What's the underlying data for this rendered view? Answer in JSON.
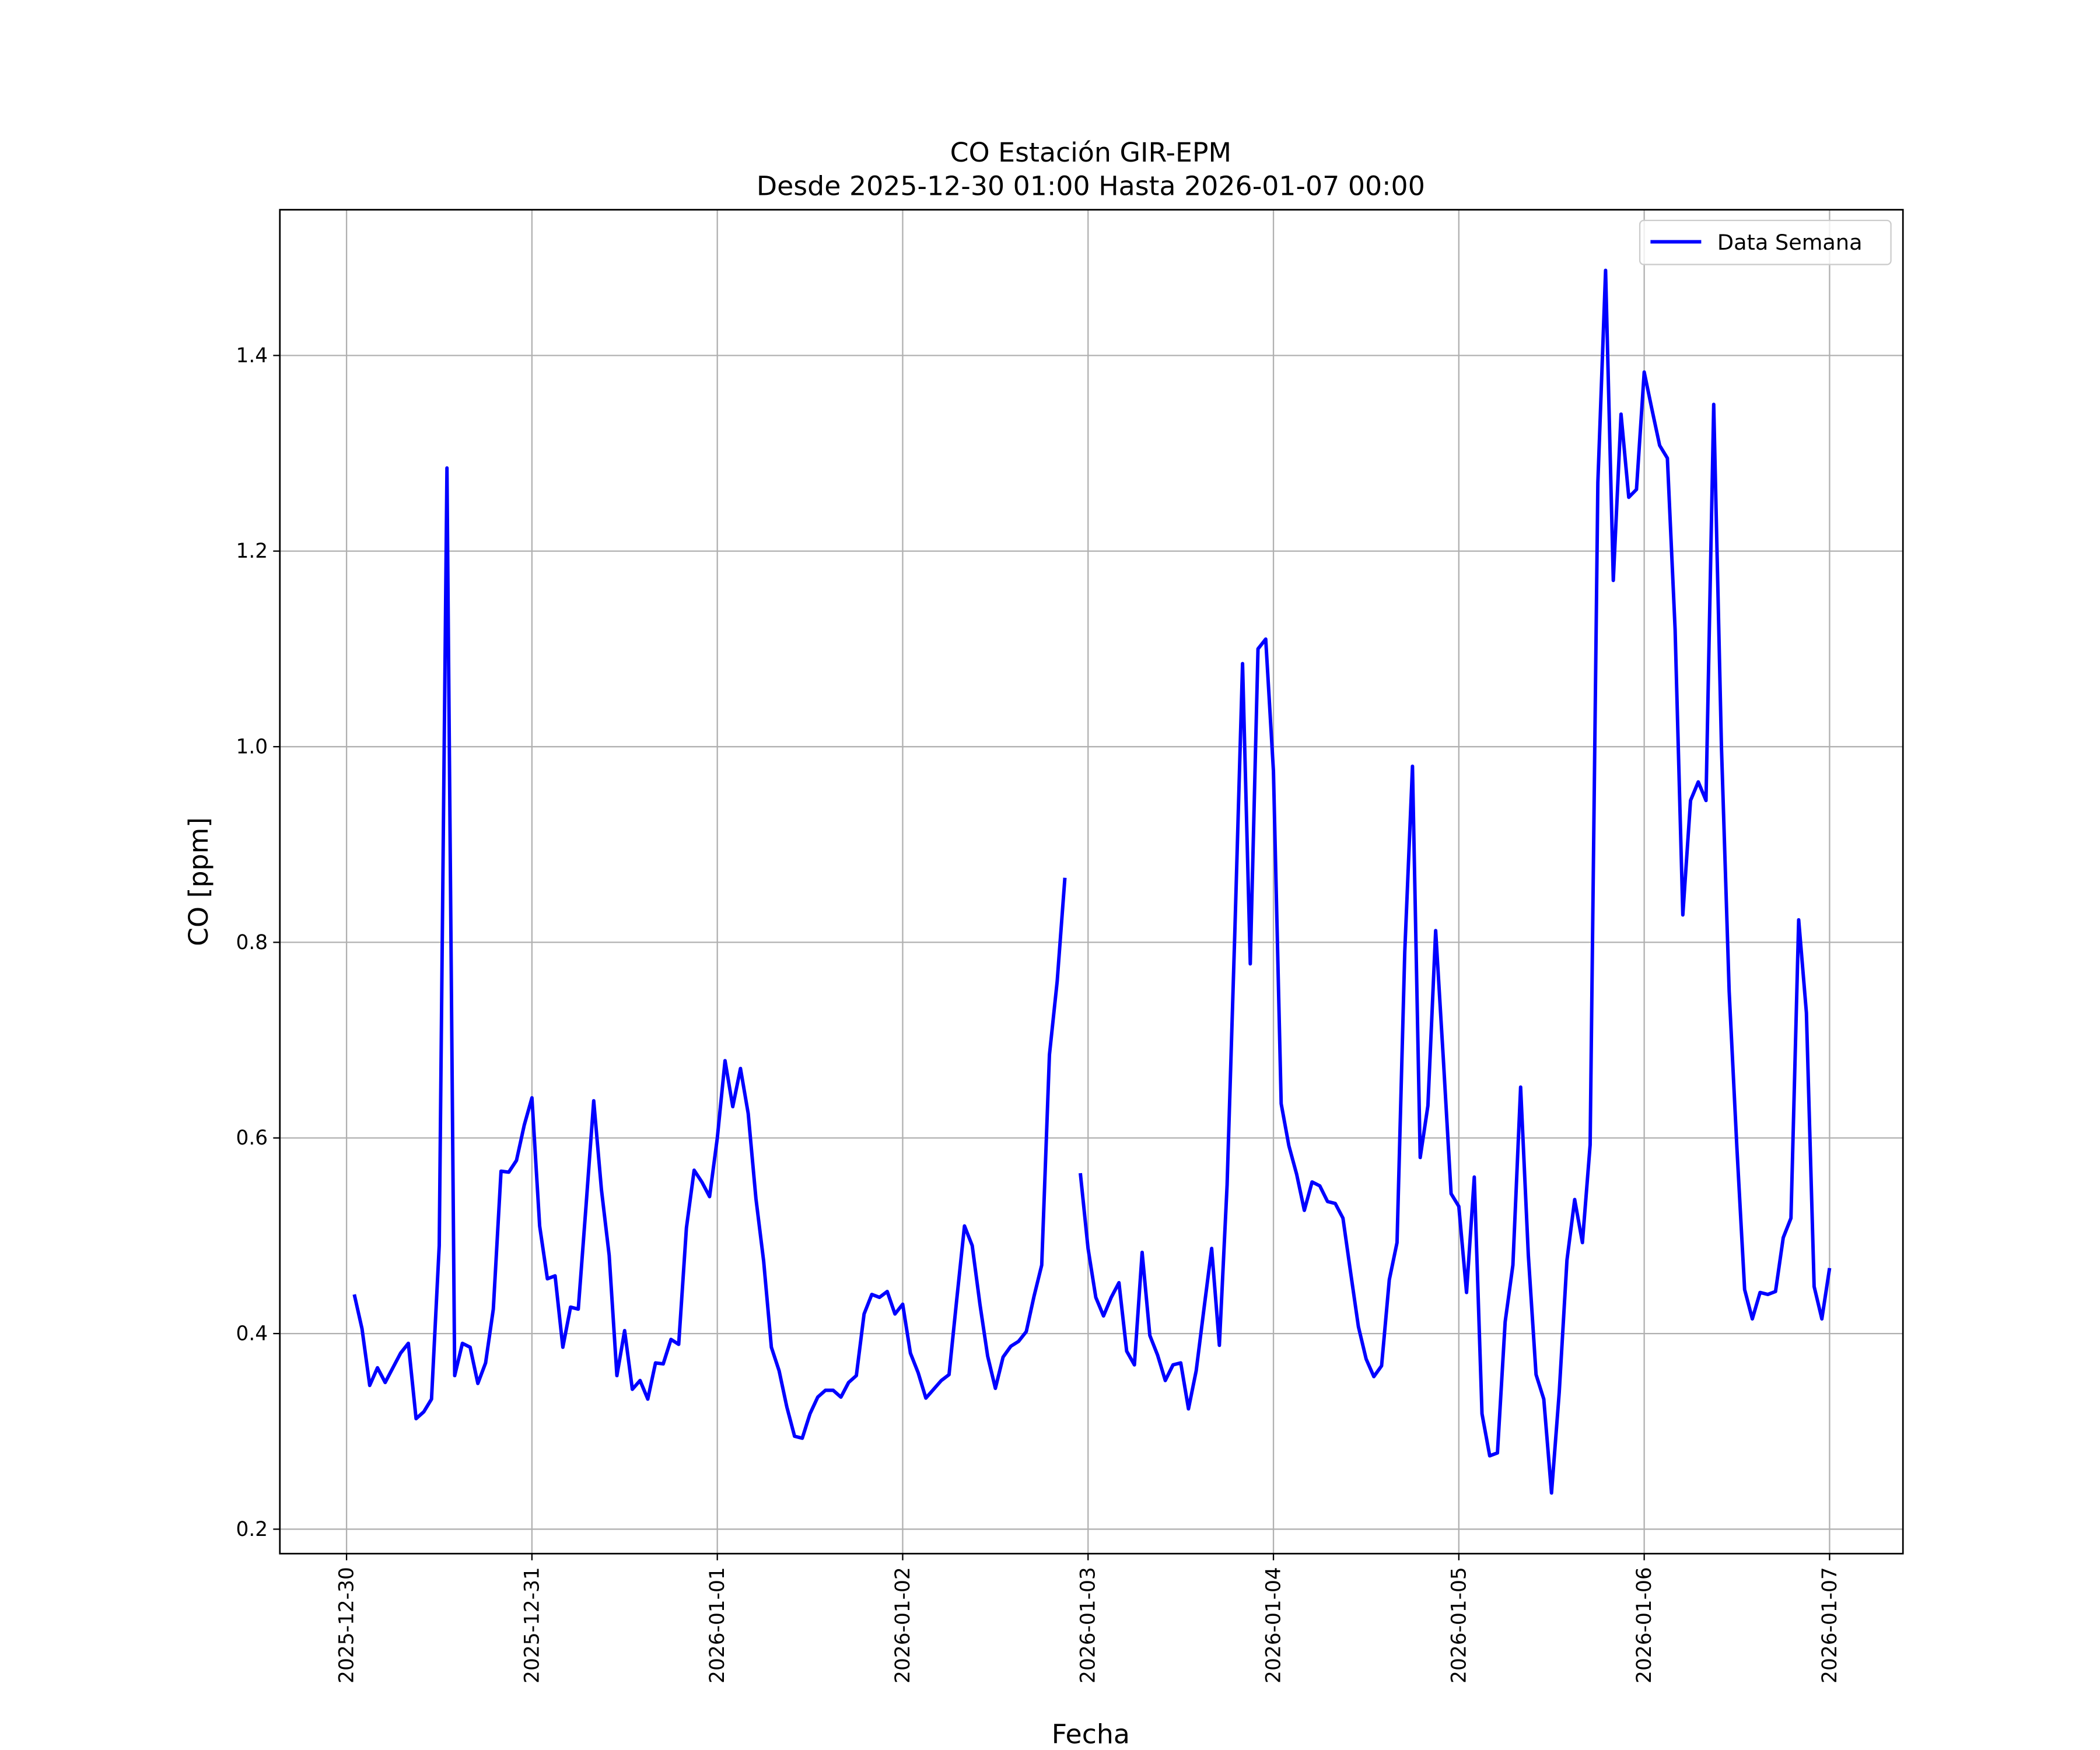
{
  "chart_data": {
    "type": "line",
    "title": "CO Estación GIR-EPM",
    "subtitle": "Desde 2025-12-30 01:00 Hasta 2026-01-07 00:00",
    "x_label": "Fecha",
    "y_label": "CO [ppm]",
    "grid": true,
    "legend": "upper right",
    "xlim": [
      "2025-12-29 15:22",
      "2026-01-07 09:30"
    ],
    "xticks": [
      "2025-12-30",
      "2025-12-31",
      "2026-01-01",
      "2026-01-02",
      "2026-01-03",
      "2026-01-04",
      "2026-01-05",
      "2026-01-06",
      "2026-01-07"
    ],
    "ylim": [
      0.175,
      1.549
    ],
    "yticks": [
      0.2,
      0.4,
      0.6,
      0.8,
      {
        "value": 1,
        "label": "1.0"
      },
      1.2,
      1.4
    ],
    "x": [
      "2025-12-30 01:00",
      "2025-12-30 02:00",
      "2025-12-30 03:00",
      "2025-12-30 04:00",
      "2025-12-30 05:00",
      "2025-12-30 06:00",
      "2025-12-30 07:00",
      "2025-12-30 08:00",
      "2025-12-30 09:00",
      "2025-12-30 10:00",
      "2025-12-30 11:00",
      "2025-12-30 12:00",
      "2025-12-30 13:00",
      "2025-12-30 14:00",
      "2025-12-30 15:00",
      "2025-12-30 16:00",
      "2025-12-30 17:00",
      "2025-12-30 18:00",
      "2025-12-30 19:00",
      "2025-12-30 20:00",
      "2025-12-30 21:00",
      "2025-12-30 22:00",
      "2025-12-30 23:00",
      "2025-12-31 00:00",
      "2025-12-31 01:00",
      "2025-12-31 02:00",
      "2025-12-31 03:00",
      "2025-12-31 04:00",
      "2025-12-31 05:00",
      "2025-12-31 06:00",
      "2025-12-31 07:00",
      "2025-12-31 08:00",
      "2025-12-31 09:00",
      "2025-12-31 10:00",
      "2025-12-31 11:00",
      "2025-12-31 12:00",
      "2025-12-31 13:00",
      "2025-12-31 14:00",
      "2025-12-31 15:00",
      "2025-12-31 16:00",
      "2025-12-31 17:00",
      "2025-12-31 18:00",
      "2025-12-31 19:00",
      "2025-12-31 20:00",
      "2025-12-31 21:00",
      "2025-12-31 22:00",
      "2025-12-31 23:00",
      "2026-01-01 00:00",
      "2026-01-01 01:00",
      "2026-01-01 02:00",
      "2026-01-01 03:00",
      "2026-01-01 04:00",
      "2026-01-01 05:00",
      "2026-01-01 06:00",
      "2026-01-01 07:00",
      "2026-01-01 08:00",
      "2026-01-01 09:00",
      "2026-01-01 10:00",
      "2026-01-01 11:00",
      "2026-01-01 12:00",
      "2026-01-01 13:00",
      "2026-01-01 14:00",
      "2026-01-01 15:00",
      "2026-01-01 16:00",
      "2026-01-01 17:00",
      "2026-01-01 18:00",
      "2026-01-01 19:00",
      "2026-01-01 20:00",
      "2026-01-01 21:00",
      "2026-01-01 22:00",
      "2026-01-01 23:00",
      "2026-01-02 00:00",
      "2026-01-02 01:00",
      "2026-01-02 02:00",
      "2026-01-02 03:00",
      "2026-01-02 04:00",
      "2026-01-02 05:00",
      "2026-01-02 06:00",
      "2026-01-02 07:00",
      "2026-01-02 08:00",
      "2026-01-02 09:00",
      "2026-01-02 10:00",
      "2026-01-02 11:00",
      "2026-01-02 12:00",
      "2026-01-02 13:00",
      "2026-01-02 14:00",
      "2026-01-02 15:00",
      "2026-01-02 16:00",
      "2026-01-02 17:00",
      "2026-01-02 18:00",
      "2026-01-02 19:00",
      "2026-01-02 20:00",
      "2026-01-02 21:00",
      "2026-01-02 22:00",
      "2026-01-02 23:00",
      "2026-01-03 00:00",
      "2026-01-03 01:00",
      "2026-01-03 02:00",
      "2026-01-03 03:00",
      "2026-01-03 04:00",
      "2026-01-03 05:00",
      "2026-01-03 06:00",
      "2026-01-03 07:00",
      "2026-01-03 08:00",
      "2026-01-03 09:00",
      "2026-01-03 10:00",
      "2026-01-03 11:00",
      "2026-01-03 12:00",
      "2026-01-03 13:00",
      "2026-01-03 14:00",
      "2026-01-03 15:00",
      "2026-01-03 16:00",
      "2026-01-03 17:00",
      "2026-01-03 18:00",
      "2026-01-03 19:00",
      "2026-01-03 20:00",
      "2026-01-03 21:00",
      "2026-01-03 22:00",
      "2026-01-03 23:00",
      "2026-01-04 00:00",
      "2026-01-04 01:00",
      "2026-01-04 02:00",
      "2026-01-04 03:00",
      "2026-01-04 04:00",
      "2026-01-04 05:00",
      "2026-01-04 06:00",
      "2026-01-04 07:00",
      "2026-01-04 08:00",
      "2026-01-04 09:00",
      "2026-01-04 10:00",
      "2026-01-04 11:00",
      "2026-01-04 12:00",
      "2026-01-04 13:00",
      "2026-01-04 14:00",
      "2026-01-04 15:00",
      "2026-01-04 16:00",
      "2026-01-04 17:00",
      "2026-01-04 18:00",
      "2026-01-04 19:00",
      "2026-01-04 20:00",
      "2026-01-04 21:00",
      "2026-01-04 22:00",
      "2026-01-04 23:00",
      "2026-01-05 00:00",
      "2026-01-05 01:00",
      "2026-01-05 02:00",
      "2026-01-05 03:00",
      "2026-01-05 04:00",
      "2026-01-05 05:00",
      "2026-01-05 06:00",
      "2026-01-05 07:00",
      "2026-01-05 08:00",
      "2026-01-05 09:00",
      "2026-01-05 10:00",
      "2026-01-05 11:00",
      "2026-01-05 12:00",
      "2026-01-05 13:00",
      "2026-01-05 14:00",
      "2026-01-05 15:00",
      "2026-01-05 16:00",
      "2026-01-05 17:00",
      "2026-01-05 18:00",
      "2026-01-05 19:00",
      "2026-01-05 20:00",
      "2026-01-05 21:00",
      "2026-01-05 22:00",
      "2026-01-05 23:00",
      "2026-01-06 00:00",
      "2026-01-06 01:00",
      "2026-01-06 02:00",
      "2026-01-06 03:00",
      "2026-01-06 04:00",
      "2026-01-06 05:00",
      "2026-01-06 06:00",
      "2026-01-06 07:00",
      "2026-01-06 08:00",
      "2026-01-06 09:00",
      "2026-01-06 10:00",
      "2026-01-06 11:00",
      "2026-01-06 12:00",
      "2026-01-06 13:00",
      "2026-01-06 14:00",
      "2026-01-06 15:00",
      "2026-01-06 16:00",
      "2026-01-06 17:00",
      "2026-01-06 18:00",
      "2026-01-06 19:00",
      "2026-01-06 20:00",
      "2026-01-06 21:00",
      "2026-01-06 22:00",
      "2026-01-06 23:00",
      "2026-01-07 00:00"
    ],
    "series": [
      {
        "name": "Data Semana",
        "color": "#0000ff",
        "values": [
          0.44,
          0.405,
          0.347,
          0.365,
          0.35,
          0.365,
          0.38,
          0.39,
          0.313,
          0.32,
          0.333,
          0.49,
          1.285,
          0.357,
          0.39,
          0.386,
          0.349,
          0.37,
          0.425,
          0.566,
          0.565,
          0.577,
          0.613,
          0.641,
          0.51,
          0.456,
          0.459,
          0.386,
          0.427,
          0.425,
          0.53,
          0.638,
          0.547,
          0.48,
          0.357,
          0.403,
          0.343,
          0.352,
          0.333,
          0.37,
          0.369,
          0.394,
          0.389,
          0.508,
          0.567,
          0.555,
          0.54,
          0.6,
          0.679,
          0.632,
          0.671,
          0.625,
          0.538,
          0.474,
          0.386,
          0.362,
          0.325,
          0.295,
          0.293,
          0.318,
          0.335,
          0.342,
          0.342,
          0.335,
          0.35,
          0.357,
          0.42,
          0.44,
          0.437,
          0.443,
          0.42,
          0.43,
          0.38,
          0.36,
          0.334,
          0.343,
          0.352,
          0.358,
          0.435,
          0.51,
          0.49,
          0.43,
          0.377,
          0.344,
          0.376,
          0.387,
          0.392,
          0.402,
          0.438,
          0.47,
          0.685,
          0.76,
          0.866,
          null,
          0.564,
          0.487,
          0.437,
          0.418,
          0.437,
          0.452,
          0.382,
          0.368,
          0.483,
          0.398,
          0.378,
          0.352,
          0.368,
          0.37,
          0.323,
          0.362,
          0.425,
          0.487,
          0.388,
          0.552,
          0.81,
          1.085,
          0.778,
          1.1,
          1.11,
          0.975,
          0.635,
          0.592,
          0.563,
          0.526,
          0.555,
          0.551,
          0.535,
          0.533,
          0.518,
          0.462,
          0.407,
          0.374,
          0.356,
          0.367,
          0.455,
          0.493,
          0.79,
          0.98,
          0.58,
          0.633,
          0.812,
          0.68,
          0.543,
          0.53,
          0.442,
          0.56,
          0.318,
          0.275,
          0.278,
          0.412,
          0.47,
          0.652,
          0.48,
          0.358,
          0.333,
          0.237,
          0.34,
          0.475,
          0.537,
          0.493,
          0.593,
          1.27,
          1.487,
          1.17,
          1.34,
          1.255,
          1.263,
          1.383,
          1.345,
          1.308,
          1.295,
          1.12,
          0.828,
          0.945,
          0.964,
          0.945,
          1.35,
          1.0,
          0.75,
          0.59,
          0.445,
          0.415,
          0.442,
          0.44,
          0.443,
          0.498,
          0.518,
          0.823,
          0.728,
          0.448,
          0.415,
          0.467
        ]
      }
    ]
  }
}
